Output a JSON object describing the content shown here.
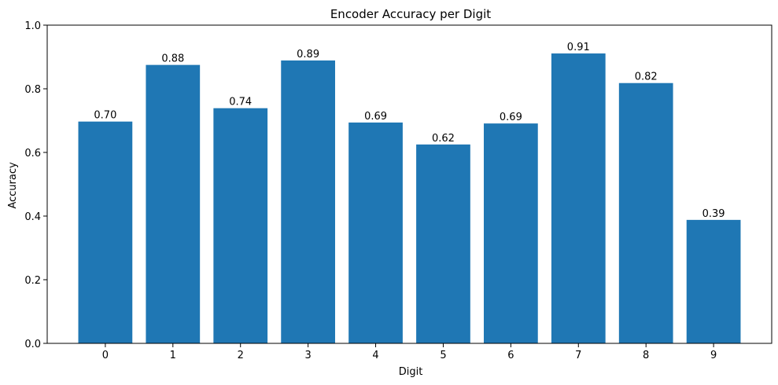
{
  "chart_data": {
    "type": "bar",
    "title": "Encoder Accuracy per Digit",
    "xlabel": "Digit",
    "ylabel": "Accuracy",
    "categories": [
      "0",
      "1",
      "2",
      "3",
      "4",
      "5",
      "6",
      "7",
      "8",
      "9"
    ],
    "values": [
      0.697,
      0.875,
      0.739,
      0.889,
      0.694,
      0.625,
      0.691,
      0.911,
      0.818,
      0.388
    ],
    "value_labels": [
      "0.70",
      "0.88",
      "0.74",
      "0.89",
      "0.69",
      "0.62",
      "0.69",
      "0.91",
      "0.82",
      "0.39"
    ],
    "ylim": [
      0,
      1.0
    ],
    "yticks": [
      0.0,
      0.2,
      0.4,
      0.6,
      0.8,
      1.0
    ],
    "ytick_labels": [
      "0.0",
      "0.2",
      "0.4",
      "0.6",
      "0.8",
      "1.0"
    ],
    "grid": false,
    "bar_color": "#1f77b4"
  }
}
